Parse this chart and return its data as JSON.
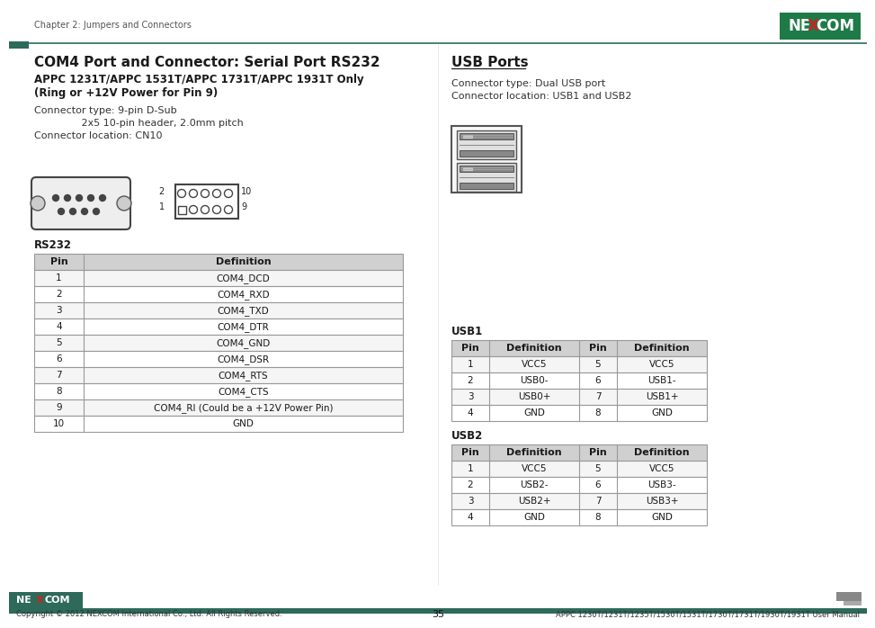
{
  "bg_color": "#ffffff",
  "header_line_color": "#2d6a5a",
  "header_square_color": "#2d6a5a",
  "footer_bar_color": "#2d6a5a",
  "page_header_text": "Chapter 2: Jumpers and Connectors",
  "left_title": "COM4 Port and Connector: Serial Port RS232",
  "left_subtitle1": "APPC 1231T/APPC 1531T/APPC 1731T/APPC 1931T Only",
  "left_subtitle2": "(Ring or +12V Power for Pin 9)",
  "left_connector_type": "Connector type: 9-pin D-Sub",
  "left_connector_type2": "               2x5 10-pin header, 2.0mm pitch",
  "left_connector_loc": "Connector location: CN10",
  "right_title": "USB Ports",
  "right_conn_type": "Connector type: Dual USB port",
  "right_conn_loc": "Connector location: USB1 and USB2",
  "rs232_label": "RS232",
  "rs232_col1_header": "Pin",
  "rs232_col2_header": "Definition",
  "rs232_pins": [
    "1",
    "2",
    "3",
    "4",
    "5",
    "6",
    "7",
    "8",
    "9",
    "10"
  ],
  "rs232_defs": [
    "COM4_DCD",
    "COM4_RXD",
    "COM4_TXD",
    "COM4_DTR",
    "COM4_GND",
    "COM4_DSR",
    "COM4_RTS",
    "COM4_CTS",
    "COM4_RI (Could be a +12V Power Pin)",
    "GND"
  ],
  "usb1_label": "USB1",
  "usb1_headers": [
    "Pin",
    "Definition",
    "Pin",
    "Definition"
  ],
  "usb1_left_pins": [
    "1",
    "2",
    "3",
    "4"
  ],
  "usb1_left_defs": [
    "VCC5",
    "USB0-",
    "USB0+",
    "GND"
  ],
  "usb1_right_pins": [
    "5",
    "6",
    "7",
    "8"
  ],
  "usb1_right_defs": [
    "VCC5",
    "USB1-",
    "USB1+",
    "GND"
  ],
  "usb2_label": "USB2",
  "usb2_headers": [
    "Pin",
    "Definition",
    "Pin",
    "Definition"
  ],
  "usb2_left_pins": [
    "1",
    "2",
    "3",
    "4"
  ],
  "usb2_left_defs": [
    "VCC5",
    "USB2-",
    "USB2+",
    "GND"
  ],
  "usb2_right_pins": [
    "5",
    "6",
    "7",
    "8"
  ],
  "usb2_right_defs": [
    "VCC5",
    "USB3-",
    "USB3+",
    "GND"
  ],
  "footer_copyright": "Copyright © 2012 NEXCOM International Co., Ltd. All Rights Reserved.",
  "footer_page": "35",
  "footer_manual": "APPC 1230T/1231T/1235T/1530T/1531T/1730T/1731T/1930T/1931T User Manual",
  "table_header_bg": "#d0d0d0",
  "table_border_color": "#999999",
  "nexcom_green": "#1e7a46"
}
